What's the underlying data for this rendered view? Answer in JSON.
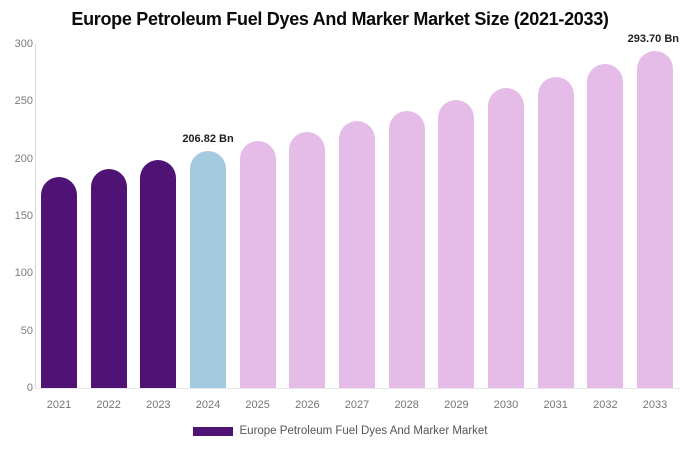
{
  "title": "Europe Petroleum Fuel Dyes And Marker Market Size (2021-2033)",
  "legend": {
    "label": "Europe Petroleum Fuel Dyes And Marker Market",
    "swatch_color": "#4F1375"
  },
  "colors": {
    "historical": "#4F1375",
    "current": "#A3CADF",
    "forecast": "#E5BCE8",
    "axis_line": "#D8D8D8",
    "baseline": "#E7E7E7",
    "tick_text": "#7B7B7B",
    "xlabel_text": "#757575",
    "legend_text": "#555555",
    "annotation_text": "#1F1F1F",
    "title_text": "#0A0A0A",
    "background": "#FFFFFF"
  },
  "chart_data": {
    "type": "bar",
    "title": "Europe Petroleum Fuel Dyes And Marker Market Size (2021-2033)",
    "unit": "Bn",
    "categories": [
      "2021",
      "2022",
      "2023",
      "2024",
      "2025",
      "2026",
      "2027",
      "2028",
      "2029",
      "2030",
      "2031",
      "2032",
      "2033"
    ],
    "values": [
      184.0,
      191.3,
      198.9,
      206.82,
      215.0,
      223.6,
      232.5,
      241.7,
      251.3,
      261.3,
      271.6,
      282.4,
      293.7
    ],
    "bar_roles": [
      "historical",
      "historical",
      "historical",
      "current",
      "forecast",
      "forecast",
      "forecast",
      "forecast",
      "forecast",
      "forecast",
      "forecast",
      "forecast",
      "forecast"
    ],
    "ylim": [
      0,
      300
    ],
    "yticks": [
      0,
      50,
      100,
      150,
      200,
      250,
      300
    ],
    "grid": false,
    "legend_position": "bottom",
    "annotations": [
      {
        "category": "2024",
        "text": "206.82 Bn"
      },
      {
        "category": "2033",
        "text": "293.70 Bn"
      }
    ]
  }
}
